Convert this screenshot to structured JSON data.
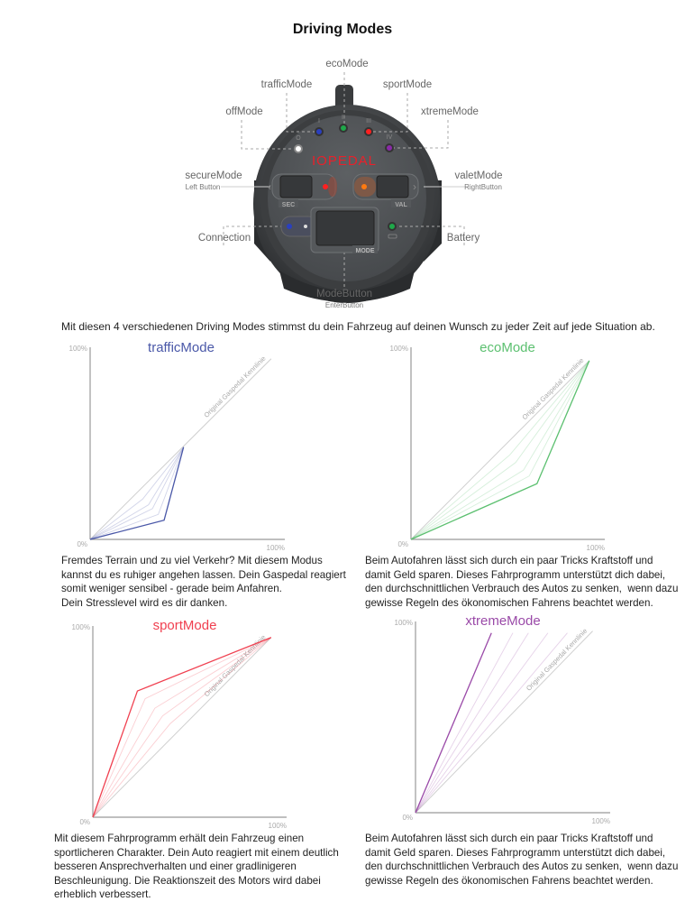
{
  "page_title": "Driving Modes",
  "device": {
    "brand_logo": "IOPEDAL",
    "labels": {
      "eco": "ecoMode",
      "traffic": "trafficMode",
      "sport": "sportMode",
      "off": "offMode",
      "xtreme": "xtremeMode",
      "secure": "secureMode",
      "secure_sub": "Left Button",
      "valet": "valetMode",
      "valet_sub": "RightButton",
      "connection": "Connection",
      "battery": "Battery",
      "mode_button": "ModeButton",
      "mode_button_sub": "EnterButton"
    },
    "button_labels": {
      "sec": "SEC",
      "val": "VAL",
      "mode": "MODE"
    },
    "led_marks": {
      "off": "O",
      "traffic": "I",
      "eco": "II",
      "sport": "III",
      "xtreme": "IV"
    },
    "led_colors": {
      "off": "#ffffff",
      "traffic": "#2a3fc0",
      "eco": "#1fa84a",
      "sport": "#ff2020",
      "xtreme": "#8a2aa8",
      "secure": "#ff2020",
      "valet": "#ff7a10",
      "connection": "#2a3fc0",
      "battery": "#1fa84a"
    }
  },
  "intro": "Mit diesen 4 verschiedenen Driving Modes stimmst du dein Fahrzeug auf deinen Wunsch zu jeder Zeit auf jede Situation ab.",
  "chart_data": [
    {
      "type": "line",
      "title": "trafficMode",
      "color": "#4a58a8",
      "ytick_top": "100%",
      "origin_label": "0%",
      "xtick_right": "100%",
      "xlim": [
        0,
        100
      ],
      "ylim": [
        0,
        100
      ],
      "reference_line": {
        "label": "Original Gaspedal Kennlinie",
        "points": [
          [
            0,
            0
          ],
          [
            93,
            94
          ]
        ]
      },
      "series": [
        {
          "points": [
            [
              0,
              0
            ],
            [
              38,
              10
            ],
            [
              48,
              48
            ]
          ],
          "emphasis": "active"
        },
        {
          "points": [
            [
              0,
              0
            ],
            [
              35,
              13
            ],
            [
              48,
              48
            ]
          ],
          "emphasis": "faint"
        },
        {
          "points": [
            [
              0,
              0
            ],
            [
              32,
              16
            ],
            [
              48,
              48
            ]
          ],
          "emphasis": "faint"
        },
        {
          "points": [
            [
              0,
              0
            ],
            [
              30,
              18
            ],
            [
              48,
              48
            ]
          ],
          "emphasis": "faint"
        },
        {
          "points": [
            [
              0,
              0
            ],
            [
              27,
              21
            ],
            [
              48,
              48
            ]
          ],
          "emphasis": "faint"
        }
      ],
      "description": "Fremdes Terrain und zu viel Verkehr? Mit diesem Modus\nkannst du es ruhiger angehen lassen. Dein Gaspedal reagiert\nsomit weniger sensibel - gerade beim Anfahren.\nDein Stresslevel wird es dir danken."
    },
    {
      "type": "line",
      "title": "ecoMode",
      "color": "#5cc070",
      "ytick_top": "100%",
      "origin_label": "0%",
      "xtick_right": "100%",
      "xlim": [
        0,
        100
      ],
      "ylim": [
        0,
        100
      ],
      "reference_line": {
        "label": "Original Gaspedal Kennlinie",
        "points": [
          [
            0,
            0
          ],
          [
            92,
            93
          ]
        ]
      },
      "series": [
        {
          "points": [
            [
              0,
              0
            ],
            [
              65,
              29
            ],
            [
              92,
              93
            ]
          ],
          "emphasis": "active"
        },
        {
          "points": [
            [
              0,
              0
            ],
            [
              61,
              33
            ],
            [
              92,
              93
            ]
          ],
          "emphasis": "faint"
        },
        {
          "points": [
            [
              0,
              0
            ],
            [
              58,
              36
            ],
            [
              92,
              93
            ]
          ],
          "emphasis": "faint"
        },
        {
          "points": [
            [
              0,
              0
            ],
            [
              54,
              40
            ],
            [
              92,
              93
            ]
          ],
          "emphasis": "faint"
        },
        {
          "points": [
            [
              0,
              0
            ],
            [
              51,
              44
            ],
            [
              92,
              93
            ]
          ],
          "emphasis": "faint"
        }
      ],
      "description": "Beim Autofahren lässt sich durch ein paar Tricks Kraftstoff und\ndamit Geld sparen. Dieses Fahrprogramm unterstützt dich dabei,\nden durchschnittlichen Verbrauch des Autos zu senken,  wenn dazu\ngewisse Regeln des ökonomischen Fahrens beachtet werden."
    },
    {
      "type": "line",
      "title": "sportMode",
      "color": "#f04050",
      "ytick_top": "100%",
      "origin_label": "0%",
      "xtick_right": "100%",
      "xlim": [
        0,
        100
      ],
      "ylim": [
        0,
        100
      ],
      "reference_line": {
        "label": "Original Gaspedal Kennlinie",
        "points": [
          [
            0,
            0
          ],
          [
            92,
            94
          ]
        ]
      },
      "series": [
        {
          "points": [
            [
              0,
              0
            ],
            [
              23,
              66
            ],
            [
              92,
              94
            ]
          ],
          "emphasis": "active"
        },
        {
          "points": [
            [
              0,
              0
            ],
            [
              27,
              62
            ],
            [
              92,
              94
            ]
          ],
          "emphasis": "faint"
        },
        {
          "points": [
            [
              0,
              0
            ],
            [
              32,
              57
            ],
            [
              92,
              94
            ]
          ],
          "emphasis": "faint"
        },
        {
          "points": [
            [
              0,
              0
            ],
            [
              36,
              53
            ],
            [
              92,
              94
            ]
          ],
          "emphasis": "faint"
        },
        {
          "points": [
            [
              0,
              0
            ],
            [
              40,
              49
            ],
            [
              92,
              94
            ]
          ],
          "emphasis": "faint"
        }
      ],
      "description": "Mit diesem Fahrprogramm erhält dein Fahrzeug einen\nsportlicheren Charakter. Dein Auto reagiert mit einem deutlich\nbesseren Ansprechverhalten und einer gradlinigeren\nBeschleunigung. Die Reaktionszeit des Motors wird dabei\nerheblich verbessert."
    },
    {
      "type": "line",
      "title": "xtremeMode",
      "color": "#9a4aa8",
      "ytick_top": "100%",
      "origin_label": "0%",
      "xtick_right": "100%",
      "xlim": [
        0,
        100
      ],
      "ylim": [
        0,
        100
      ],
      "reference_line": {
        "label": "Original Gaspedal Kennlinie",
        "points": [
          [
            0,
            0
          ],
          [
            91,
            95
          ]
        ]
      },
      "series": [
        {
          "points": [
            [
              0,
              0
            ],
            [
              39,
              94
            ]
          ],
          "emphasis": "active"
        },
        {
          "points": [
            [
              0,
              0
            ],
            [
              50,
              94
            ]
          ],
          "emphasis": "faint"
        },
        {
          "points": [
            [
              0,
              0
            ],
            [
              58,
              94
            ]
          ],
          "emphasis": "faint"
        },
        {
          "points": [
            [
              0,
              0
            ],
            [
              68,
              94
            ]
          ],
          "emphasis": "faint"
        },
        {
          "points": [
            [
              0,
              0
            ],
            [
              78,
              94
            ]
          ],
          "emphasis": "faint"
        }
      ],
      "description": "Beim Autofahren lässt sich durch ein paar Tricks Kraftstoff und\ndamit Geld sparen. Dieses Fahrprogramm unterstützt dich dabei,\nden durchschnittlichen Verbrauch des Autos zu senken,  wenn dazu\ngewisse Regeln des ökonomischen Fahrens beachtet werden."
    }
  ]
}
